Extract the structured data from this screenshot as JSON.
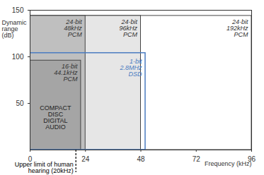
{
  "chart_data": {
    "type": "rect",
    "x_label": "Frequency (kHz)",
    "y_label": "Dynamic range (dB)",
    "xlim": [
      0,
      96
    ],
    "xticks": [
      0,
      24,
      48,
      72,
      96
    ],
    "ylim": [
      0,
      150
    ],
    "yticks": [
      50,
      100,
      150
    ],
    "series": [
      {
        "name": "24-bit 192kHz PCM",
        "type": "rect",
        "color": "#ffffff",
        "x1": 0,
        "x2": 96,
        "y1": 0,
        "y2": 144
      },
      {
        "name": "24-bit 96kHz PCM",
        "type": "rect",
        "color": "#e6e6e6",
        "x1": 0,
        "x2": 48,
        "y1": 0,
        "y2": 144
      },
      {
        "name": "24-bit 48kHz PCM",
        "type": "rect",
        "color": "#bfbfbf",
        "x1": 0,
        "x2": 24,
        "y1": 0,
        "y2": 144
      },
      {
        "name": "16-bit 44.1kHz PCM",
        "type": "rect",
        "color": "#a5a5a5",
        "x1": 0,
        "x2": 22.05,
        "y1": 0,
        "y2": 96,
        "sublabel": "COMPACT DISC DIGITAL AUDIO"
      },
      {
        "name": "1-bit 2.8MHz DSD",
        "type": "outline",
        "color": "#4a7cc1",
        "x1": 0,
        "x2": 50,
        "y1": 0,
        "y2": 104
      }
    ],
    "annotations": [
      {
        "text": "Upper limit of human hearing (20kHz)",
        "x": 20,
        "line_style": "dashed"
      }
    ]
  }
}
